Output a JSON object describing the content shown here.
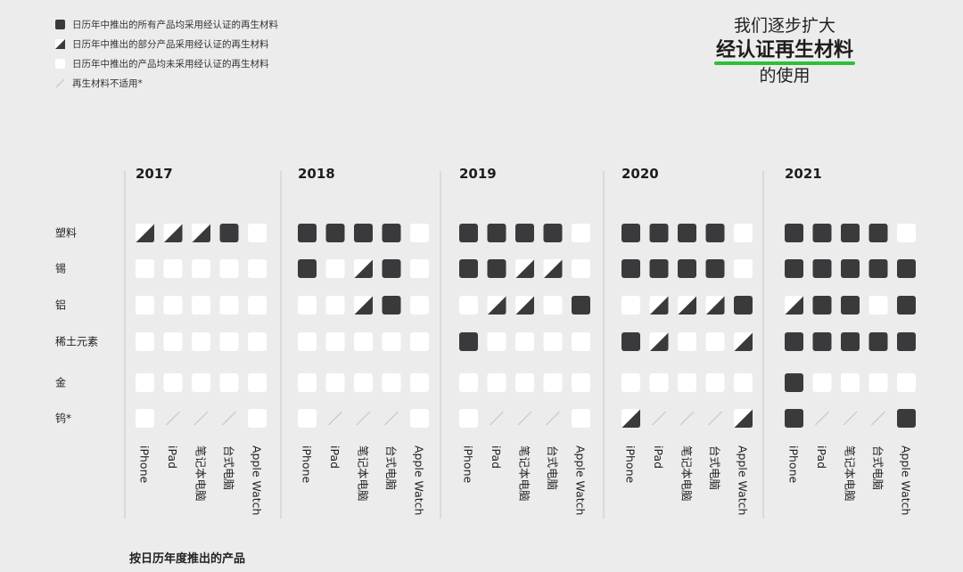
{
  "legend": [
    {
      "kind": "all",
      "label": "日历年中推出的所有产品均采用经认证的再生材料"
    },
    {
      "kind": "some",
      "label": "日历年中推出的部分产品采用经认证的再生材料"
    },
    {
      "kind": "none",
      "label": "日历年中推出的产品均未采用经认证的再生材料"
    },
    {
      "kind": "na",
      "label": "再生材料不适用*"
    }
  ],
  "headline": {
    "line1": "我们逐步扩大",
    "line2": "经认证再生材料",
    "line3": "的使用"
  },
  "colors": {
    "filled": "#3a3a3c",
    "empty": "#ffffff",
    "divider": "#c8c8c8",
    "na_slash": "#c6c6c6",
    "accent_green": "#2dbe3c"
  },
  "footer": {
    "caption": "按日历年度推出的产品"
  },
  "chart_data": {
    "type": "table",
    "years": [
      "2017",
      "2018",
      "2019",
      "2020",
      "2021"
    ],
    "products": [
      "iPhone",
      "iPad",
      "笔记本电脑",
      "台式电脑",
      "Apple Watch"
    ],
    "materials": [
      "塑料",
      "锡",
      "铝",
      "稀土元素",
      "金",
      "钨*"
    ],
    "status_key": {
      "F": "all",
      "H": "some",
      "E": "none",
      "N": "na"
    },
    "status": {
      "2017": [
        [
          "H",
          "H",
          "H",
          "F",
          "E"
        ],
        [
          "E",
          "E",
          "E",
          "E",
          "E"
        ],
        [
          "E",
          "E",
          "E",
          "E",
          "E"
        ],
        [
          "E",
          "E",
          "E",
          "E",
          "E"
        ],
        [
          "E",
          "E",
          "E",
          "E",
          "E"
        ],
        [
          "E",
          "N",
          "N",
          "N",
          "E"
        ]
      ],
      "2018": [
        [
          "F",
          "F",
          "F",
          "F",
          "E"
        ],
        [
          "F",
          "E",
          "H",
          "F",
          "E"
        ],
        [
          "E",
          "E",
          "H",
          "F",
          "E"
        ],
        [
          "E",
          "E",
          "E",
          "E",
          "E"
        ],
        [
          "E",
          "E",
          "E",
          "E",
          "E"
        ],
        [
          "E",
          "N",
          "N",
          "N",
          "E"
        ]
      ],
      "2019": [
        [
          "F",
          "F",
          "F",
          "F",
          "E"
        ],
        [
          "F",
          "F",
          "H",
          "H",
          "E"
        ],
        [
          "E",
          "H",
          "H",
          "E",
          "F"
        ],
        [
          "F",
          "E",
          "E",
          "E",
          "E"
        ],
        [
          "E",
          "E",
          "E",
          "E",
          "E"
        ],
        [
          "E",
          "N",
          "N",
          "N",
          "E"
        ]
      ],
      "2020": [
        [
          "F",
          "F",
          "F",
          "F",
          "E"
        ],
        [
          "F",
          "F",
          "F",
          "F",
          "E"
        ],
        [
          "E",
          "H",
          "H",
          "H",
          "F"
        ],
        [
          "F",
          "H",
          "E",
          "E",
          "H"
        ],
        [
          "E",
          "E",
          "E",
          "E",
          "E"
        ],
        [
          "H",
          "N",
          "N",
          "N",
          "H"
        ]
      ],
      "2021": [
        [
          "F",
          "F",
          "F",
          "F",
          "E"
        ],
        [
          "F",
          "F",
          "F",
          "F",
          "F"
        ],
        [
          "H",
          "F",
          "F",
          "E",
          "F"
        ],
        [
          "F",
          "F",
          "F",
          "F",
          "F"
        ],
        [
          "F",
          "E",
          "E",
          "E",
          "E"
        ],
        [
          "F",
          "N",
          "N",
          "N",
          "F"
        ]
      ]
    }
  }
}
